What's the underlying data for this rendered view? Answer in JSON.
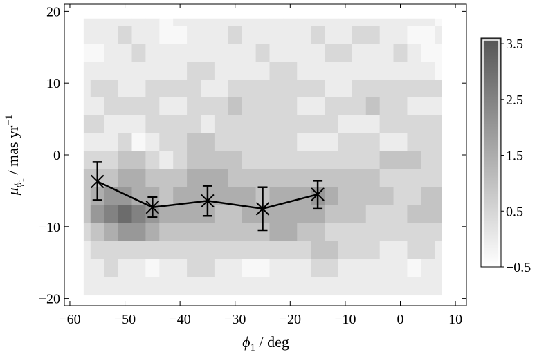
{
  "chart_data": {
    "type": "heatmap",
    "title": "",
    "xlabel_symbol": "ϕ",
    "xlabel_sub": "1",
    "xlabel_unit": " / deg",
    "ylabel_symbol": "μ",
    "ylabel_sub_symbol": "ϕ",
    "ylabel_sub": "1",
    "ylabel_unit": " / mas yr",
    "ylabel_exp": "−1",
    "xlim": [
      -61,
      12
    ],
    "ylim": [
      -21,
      21
    ],
    "xticks": [
      -60,
      -50,
      -40,
      -30,
      -20,
      -10,
      0,
      10
    ],
    "xtick_labels": [
      "−60",
      "−50",
      "−40",
      "−30",
      "−20",
      "−10",
      "0",
      "10"
    ],
    "yticks": [
      -20,
      -10,
      0,
      10,
      20
    ],
    "ytick_labels": [
      "−20",
      "−10",
      "0",
      "10",
      "20"
    ],
    "data_extent": {
      "x": [
        -57.5,
        7.5
      ],
      "y": [
        -19.5,
        19
      ]
    },
    "colorbar": {
      "range": [
        -0.5,
        3.6
      ],
      "ticks": [
        3.5,
        2.5,
        1.5,
        0.5,
        -0.5
      ],
      "tick_labels": [
        "3.5",
        "2.5",
        "1.5",
        "0.5",
        "−0.5"
      ],
      "level_colors": [
        "#f8f8f8",
        "#ececec",
        "#d8d8d8",
        "#c4c4c4",
        "#aeaeae",
        "#989898",
        "#828282",
        "#6c6c6c",
        "#575757"
      ]
    },
    "grid_x": [
      -57.5,
      -55,
      -52.5,
      -50,
      -47.5,
      -45,
      -42.5,
      -40,
      -37.5,
      -35,
      -32.5,
      -30,
      -27.5,
      -25,
      -22.5,
      -20,
      -17.5,
      -15,
      -12.5,
      -10,
      -7.5,
      -5,
      -2.5,
      0,
      2.5,
      5,
      7.5
    ],
    "bands": [
      {
        "y0": 18.0,
        "y1": 19.0,
        "levels": [
          1,
          1,
          1,
          1,
          1,
          1,
          0,
          1,
          1,
          1,
          1,
          1,
          1,
          1,
          1,
          1,
          1,
          1,
          1,
          1,
          1,
          1,
          1,
          1,
          1,
          1,
          0
        ]
      },
      {
        "y0": 15.5,
        "y1": 18.0,
        "levels": [
          1,
          1,
          1,
          2,
          1,
          1,
          0,
          0,
          1,
          1,
          1,
          2,
          1,
          1,
          1,
          1,
          1,
          2,
          1,
          1,
          2,
          2,
          1,
          1,
          0,
          0,
          1
        ]
      },
      {
        "y0": 13.0,
        "y1": 15.5,
        "levels": [
          0,
          0,
          1,
          1,
          2,
          1,
          1,
          1,
          1,
          1,
          1,
          1,
          1,
          2,
          1,
          1,
          1,
          1,
          2,
          2,
          1,
          1,
          1,
          2,
          1,
          0,
          0
        ]
      },
      {
        "y0": 10.5,
        "y1": 13.0,
        "levels": [
          1,
          1,
          1,
          1,
          1,
          1,
          1,
          1,
          2,
          2,
          1,
          1,
          1,
          1,
          2,
          2,
          1,
          1,
          1,
          1,
          1,
          1,
          1,
          1,
          1,
          1,
          0
        ]
      },
      {
        "y0": 8.0,
        "y1": 10.5,
        "levels": [
          1,
          2,
          2,
          1,
          1,
          2,
          2,
          2,
          2,
          1,
          1,
          2,
          2,
          2,
          2,
          2,
          2,
          2,
          1,
          1,
          2,
          2,
          2,
          2,
          2,
          2,
          2
        ]
      },
      {
        "y0": 5.5,
        "y1": 8.0,
        "levels": [
          1,
          1,
          2,
          2,
          2,
          2,
          1,
          1,
          2,
          2,
          2,
          3,
          2,
          2,
          2,
          2,
          1,
          1,
          2,
          2,
          2,
          3,
          2,
          2,
          1,
          1,
          1
        ]
      },
      {
        "y0": 3.0,
        "y1": 5.5,
        "levels": [
          2,
          2,
          1,
          1,
          1,
          2,
          2,
          2,
          2,
          1,
          2,
          2,
          2,
          2,
          2,
          2,
          2,
          2,
          2,
          1,
          1,
          1,
          2,
          2,
          2,
          2,
          2
        ]
      },
      {
        "y0": 0.5,
        "y1": 3.0,
        "levels": [
          1,
          1,
          1,
          2,
          0,
          1,
          2,
          2,
          3,
          3,
          2,
          2,
          2,
          2,
          2,
          2,
          1,
          1,
          1,
          2,
          2,
          2,
          1,
          1,
          2,
          2,
          2
        ]
      },
      {
        "y0": -2.0,
        "y1": 0.5,
        "levels": [
          2,
          2,
          2,
          3,
          3,
          2,
          1,
          2,
          3,
          3,
          3,
          3,
          2,
          2,
          2,
          2,
          2,
          2,
          2,
          2,
          2,
          2,
          3,
          3,
          3,
          2,
          2
        ]
      },
      {
        "y0": -4.5,
        "y1": -2.0,
        "levels": [
          3,
          3,
          3,
          4,
          4,
          3,
          3,
          3,
          4,
          4,
          4,
          3,
          3,
          3,
          3,
          3,
          3,
          3,
          3,
          3,
          3,
          3,
          2,
          2,
          2,
          2,
          2
        ]
      },
      {
        "y0": -7.0,
        "y1": -4.5,
        "levels": [
          3,
          4,
          5,
          5,
          4,
          4,
          3,
          4,
          4,
          4,
          4,
          4,
          4,
          3,
          4,
          4,
          4,
          5,
          4,
          3,
          3,
          3,
          3,
          2,
          2,
          3,
          3
        ]
      },
      {
        "y0": -9.5,
        "y1": -7.0,
        "levels": [
          3,
          5,
          6,
          7,
          6,
          5,
          4,
          4,
          4,
          4,
          3,
          3,
          4,
          4,
          4,
          4,
          4,
          4,
          3,
          3,
          3,
          2,
          2,
          2,
          3,
          3,
          3
        ]
      },
      {
        "y0": -12.0,
        "y1": -9.5,
        "levels": [
          2,
          3,
          4,
          5,
          5,
          4,
          3,
          3,
          3,
          3,
          3,
          3,
          3,
          3,
          4,
          4,
          3,
          3,
          2,
          2,
          2,
          2,
          2,
          2,
          2,
          2,
          2
        ]
      },
      {
        "y0": -14.5,
        "y1": -12.0,
        "levels": [
          1,
          2,
          2,
          2,
          2,
          2,
          2,
          2,
          2,
          2,
          2,
          2,
          2,
          2,
          2,
          2,
          2,
          3,
          3,
          2,
          2,
          2,
          1,
          1,
          2,
          2,
          1
        ]
      },
      {
        "y0": -17.0,
        "y1": -14.5,
        "levels": [
          1,
          1,
          2,
          1,
          1,
          0,
          1,
          1,
          2,
          2,
          1,
          1,
          0,
          0,
          1,
          1,
          1,
          2,
          2,
          1,
          1,
          1,
          1,
          1,
          0,
          1,
          1
        ]
      },
      {
        "y0": -19.5,
        "y1": -17.0,
        "levels": [
          1,
          1,
          1,
          1,
          1,
          1,
          1,
          1,
          1,
          1,
          1,
          1,
          1,
          1,
          1,
          1,
          1,
          1,
          1,
          1,
          1,
          1,
          1,
          1,
          1,
          1,
          1
        ]
      }
    ],
    "series": [
      {
        "type": "line-errorbar",
        "marker": "x",
        "x": [
          -55,
          -45,
          -35,
          -25,
          -15
        ],
        "y": [
          -3.7,
          -7.3,
          -6.4,
          -7.5,
          -5.5
        ],
        "yerr_low": [
          2.6,
          1.4,
          2.1,
          3.0,
          2.0
        ],
        "yerr_high": [
          2.7,
          1.4,
          2.1,
          3.0,
          1.9
        ]
      }
    ],
    "grid": false,
    "legend": false
  }
}
